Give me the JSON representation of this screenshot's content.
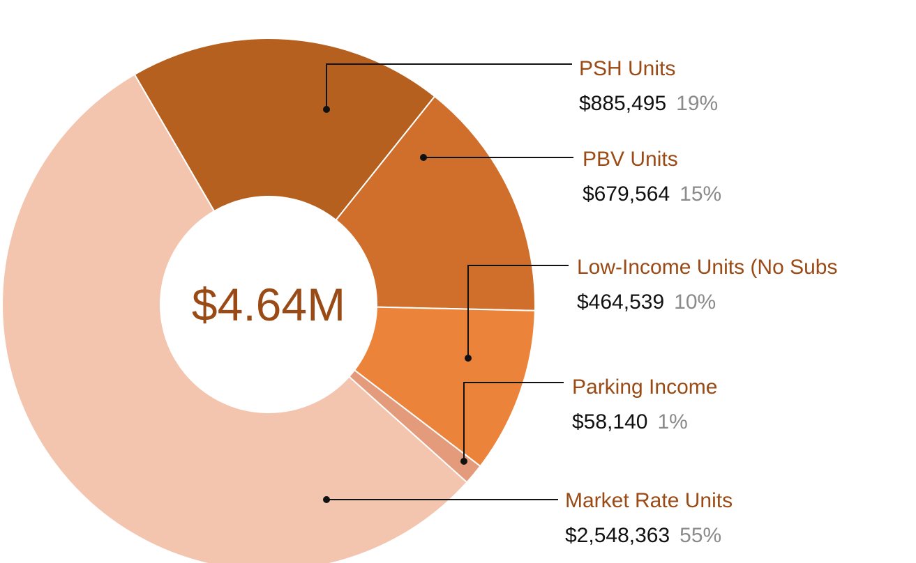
{
  "chart_data": {
    "type": "donut",
    "total_label": "$4.64M",
    "categories": [
      "PSH Units",
      "PBV Units",
      "Low-Income Units (No Subs",
      "Parking Income",
      "Market Rate Units"
    ],
    "values": [
      885495,
      679564,
      464539,
      58140,
      2548363
    ],
    "value_labels": [
      "$885,495",
      "$679,564",
      "$464,539",
      "$58,140",
      "$2,548,363"
    ],
    "percent_labels": [
      "19%",
      "15%",
      "10%",
      "1%",
      "55%"
    ],
    "colors": [
      "#b5601f",
      "#d06f2b",
      "#eb843a",
      "#e49b7b",
      "#f3c5af"
    ]
  }
}
